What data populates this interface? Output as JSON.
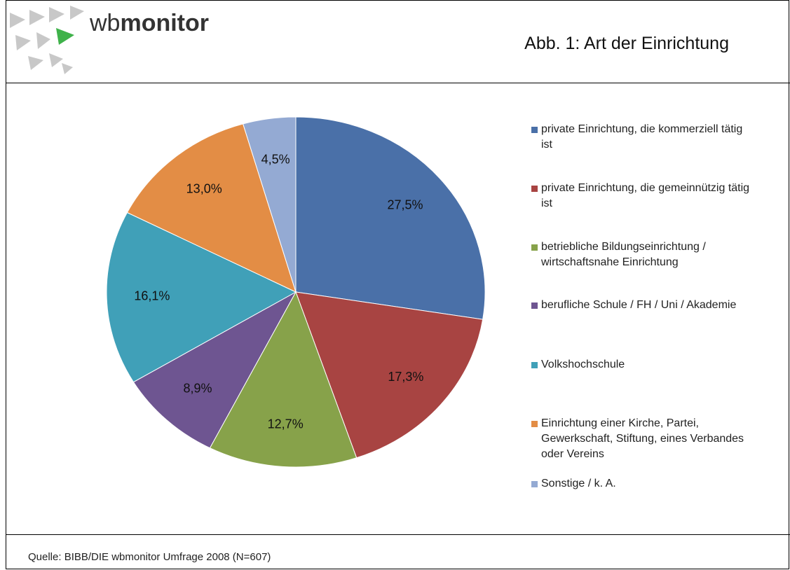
{
  "logo": {
    "light": "wb",
    "bold": "monitor"
  },
  "source": "Quelle: BIBB/DIE  wbmonitor Umfrage 2008 (N=607)",
  "chart_data": {
    "type": "pie",
    "title": "Abb. 1: Art der Einrichtung",
    "categories": [
      "private Einrichtung, die kommerziell tätig ist",
      "private Einrichtung, die gemeinnützig tätig ist",
      "betriebliche Bildungseinrichtung / wirtschaftsnahe Einrichtung",
      "berufliche Schule / FH / Uni / Akademie",
      "Volkshochschule",
      "Einrichtung einer Kirche, Partei, Gewerkschaft, Stiftung, eines Verbandes oder Vereins",
      "Sonstige / k. A."
    ],
    "values": [
      27.5,
      17.3,
      12.7,
      8.9,
      16.1,
      13.0,
      4.5
    ],
    "value_labels": [
      "27,5%",
      "17,3%",
      "12,7%",
      "8,9%",
      "16,1%",
      "13,0%",
      "4,5%"
    ],
    "colors": [
      "#4a70a8",
      "#a84442",
      "#87a24a",
      "#6e5591",
      "#40a0b8",
      "#e38d45",
      "#94aad3"
    ],
    "legend": "right"
  }
}
